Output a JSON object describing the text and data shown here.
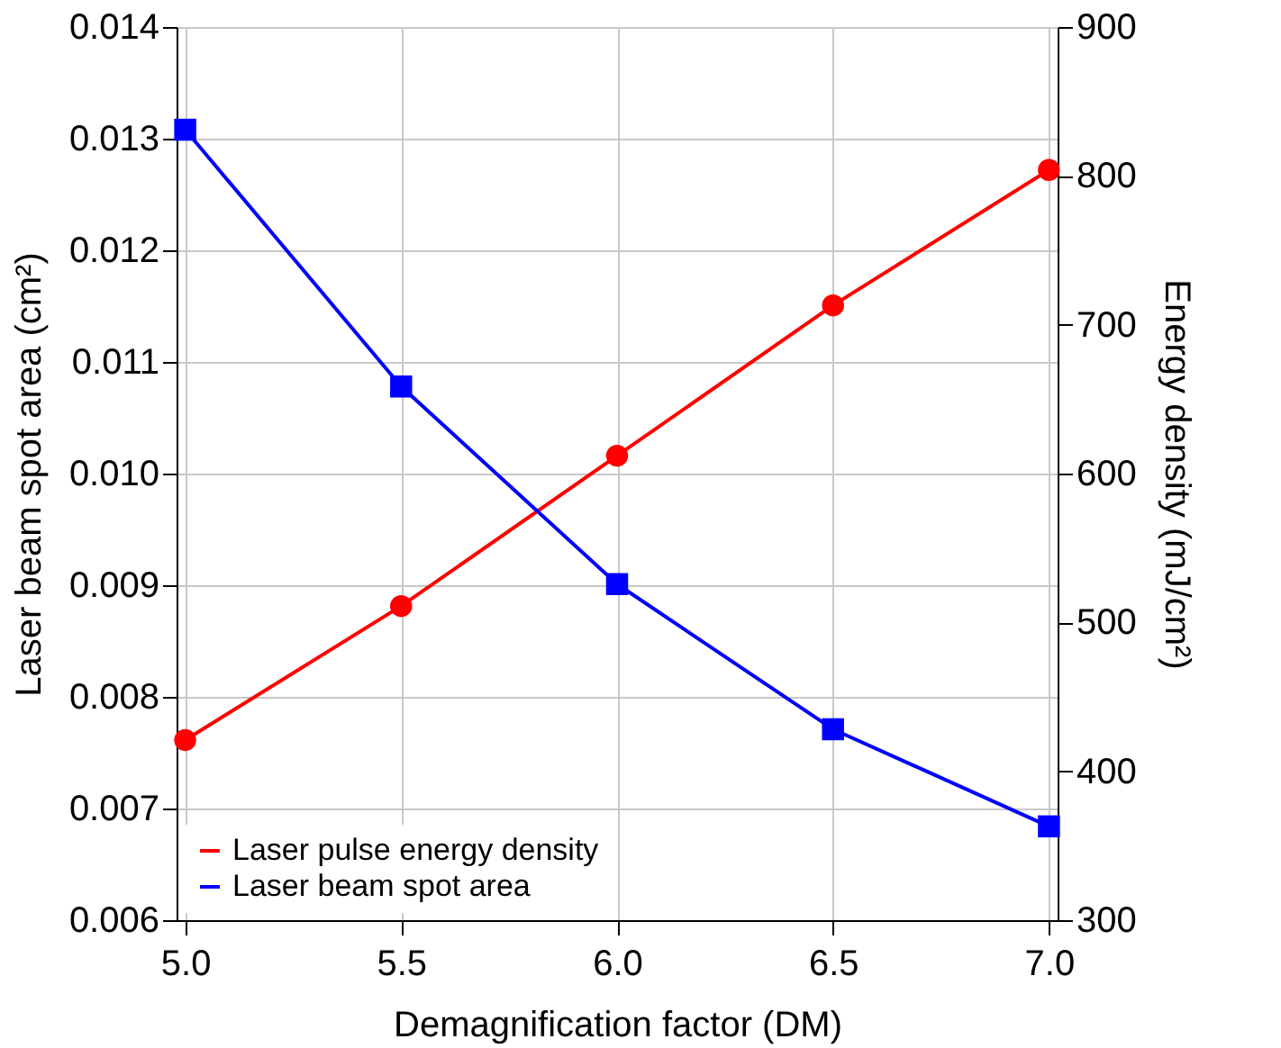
{
  "chart_data": {
    "type": "line",
    "xlabel": "Demagnification factor (DM)",
    "ylabel": "Laser beam spot area (cm²)",
    "y2label": "Energy density (mJ/cm²)",
    "x": [
      5.0,
      5.5,
      6.0,
      6.5,
      7.0
    ],
    "series": [
      {
        "name": "Laser pulse energy density",
        "color": "#ff0000",
        "marker": "circle",
        "axis": "y2",
        "values": [
          421,
          511,
          612,
          713,
          804
        ]
      },
      {
        "name": "Laser beam spot area",
        "color": "#0000ff",
        "marker": "square",
        "values": [
          0.01308,
          0.01078,
          0.00901,
          0.00771,
          0.00684
        ]
      }
    ],
    "xlim": [
      4.98,
      7.02
    ],
    "xticks": [
      {
        "value": 5.0,
        "label": "5.0"
      },
      {
        "value": 5.5,
        "label": "5.5"
      },
      {
        "value": 6.0,
        "label": "6.0"
      },
      {
        "value": 6.5,
        "label": "6.5"
      },
      {
        "value": 7.0,
        "label": "7.0"
      }
    ],
    "ylim": [
      0.006,
      0.014
    ],
    "yticks": [
      {
        "value": 0.006,
        "label": "0.006"
      },
      {
        "value": 0.007,
        "label": "0.007"
      },
      {
        "value": 0.008,
        "label": "0.008"
      },
      {
        "value": 0.009,
        "label": "0.009"
      },
      {
        "value": 0.01,
        "label": "0.010"
      },
      {
        "value": 0.011,
        "label": "0.011"
      },
      {
        "value": 0.012,
        "label": "0.012"
      },
      {
        "value": 0.013,
        "label": "0.013"
      },
      {
        "value": 0.014,
        "label": "0.014"
      }
    ],
    "y2lim": [
      300,
      900
    ],
    "y2ticks": [
      300,
      400,
      500,
      600,
      700,
      800,
      900
    ],
    "grid": true,
    "legend": "bottom left",
    "line_style": "solid"
  }
}
